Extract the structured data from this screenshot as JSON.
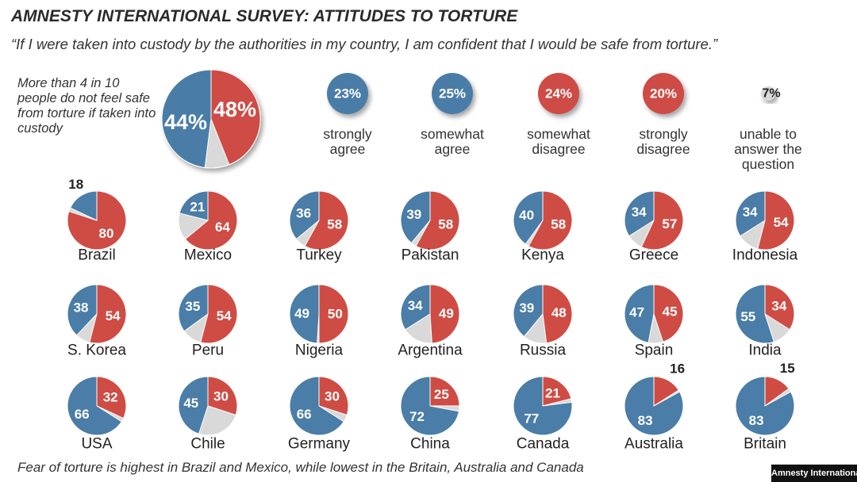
{
  "title": "AMNESTY INTERNATIONAL SURVEY: ATTITUDES TO TORTURE",
  "question": "“If I were taken into custody by the authorities in my country, I am confident that I would be safe from torture.”",
  "summary": "More than 4 in 10 people do not feel safe from torture if taken into custody",
  "footnote": "Fear of torture is highest in Brazil and Mexico, while lowest in the Britain, Australia and Canada",
  "source": "Amnesty International",
  "colors": {
    "agree": "#4a7da7",
    "disagree": "#cf4c44",
    "unsure": "#d9d9d9"
  },
  "chart_data": {
    "type": "pie",
    "overall": {
      "agree": 48,
      "disagree": 44,
      "agree_label": "48%",
      "disagree_label": "44%"
    },
    "legend": [
      {
        "value": 23,
        "label_value": "23%",
        "label": [
          "strongly",
          "agree"
        ],
        "color": "agree"
      },
      {
        "value": 25,
        "label_value": "25%",
        "label": [
          "somewhat",
          "agree"
        ],
        "color": "agree"
      },
      {
        "value": 24,
        "label_value": "24%",
        "label": [
          "somewhat",
          "disagree"
        ],
        "color": "disagree"
      },
      {
        "value": 20,
        "label_value": "20%",
        "label": [
          "strongly",
          "disagree"
        ],
        "color": "disagree"
      },
      {
        "value": 7,
        "label_value": "7%",
        "label": [
          "unable to",
          "answer the",
          "question"
        ],
        "color": "unsure"
      }
    ],
    "countries": [
      {
        "name": "Brazil",
        "agree": 18,
        "disagree": 80
      },
      {
        "name": "Mexico",
        "agree": 21,
        "disagree": 64
      },
      {
        "name": "Turkey",
        "agree": 36,
        "disagree": 58
      },
      {
        "name": "Pakistan",
        "agree": 39,
        "disagree": 58
      },
      {
        "name": "Kenya",
        "agree": 40,
        "disagree": 58
      },
      {
        "name": "Greece",
        "agree": 34,
        "disagree": 57
      },
      {
        "name": "Indonesia",
        "agree": 34,
        "disagree": 54
      },
      {
        "name": "S. Korea",
        "agree": 38,
        "disagree": 54
      },
      {
        "name": "Peru",
        "agree": 35,
        "disagree": 54
      },
      {
        "name": "Nigeria",
        "agree": 49,
        "disagree": 50
      },
      {
        "name": "Argentina",
        "agree": 34,
        "disagree": 49
      },
      {
        "name": "Russia",
        "agree": 39,
        "disagree": 48
      },
      {
        "name": "Spain",
        "agree": 47,
        "disagree": 45
      },
      {
        "name": "India",
        "agree": 55,
        "disagree": 34
      },
      {
        "name": "USA",
        "agree": 66,
        "disagree": 32
      },
      {
        "name": "Chile",
        "agree": 45,
        "disagree": 30
      },
      {
        "name": "Germany",
        "agree": 66,
        "disagree": 30
      },
      {
        "name": "China",
        "agree": 72,
        "disagree": 25
      },
      {
        "name": "Canada",
        "agree": 77,
        "disagree": 21
      },
      {
        "name": "Australia",
        "agree": 83,
        "disagree": 16
      },
      {
        "name": "Britain",
        "agree": 83,
        "disagree": 15
      }
    ]
  }
}
